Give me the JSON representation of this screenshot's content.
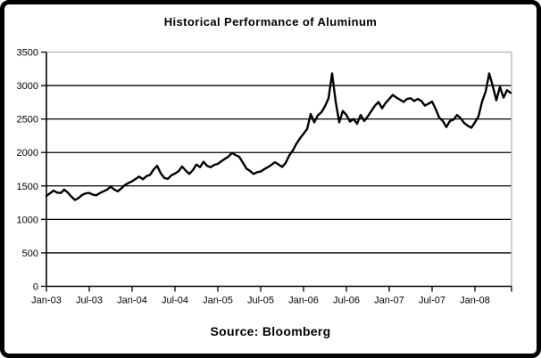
{
  "source_caption": "Source: Bloomberg",
  "colors": {
    "line": "#000000",
    "grid": "#000000",
    "axis": "#000000",
    "plot_border": "#b3b3b3",
    "frame": "#000000",
    "background": "#ffffff",
    "text": "#000000"
  },
  "chart_data": {
    "type": "line",
    "title": "Historical Performance of Aluminum",
    "xlabel": "",
    "ylabel": "",
    "ylim": [
      0,
      3500
    ],
    "y_ticks": [
      0,
      500,
      1000,
      1500,
      2000,
      2500,
      3000,
      3500
    ],
    "x_tick_labels": [
      "Jan-03",
      "Jul-03",
      "Jan-04",
      "Jul-04",
      "Jan-05",
      "Jul-05",
      "Jan-06",
      "Jul-06",
      "Jan-07",
      "Jul-07",
      "Jan-08"
    ],
    "x_start": "Jan-03",
    "x_end": "Jun-08",
    "grid": true,
    "legend": "none",
    "series": [
      {
        "name": "Aluminum",
        "points_per_month": 2,
        "values": [
          1350,
          1390,
          1430,
          1400,
          1395,
          1445,
          1400,
          1340,
          1290,
          1320,
          1365,
          1390,
          1395,
          1370,
          1360,
          1395,
          1420,
          1445,
          1490,
          1445,
          1420,
          1465,
          1515,
          1545,
          1570,
          1605,
          1640,
          1600,
          1645,
          1665,
          1745,
          1800,
          1690,
          1620,
          1605,
          1660,
          1685,
          1720,
          1790,
          1730,
          1680,
          1735,
          1820,
          1780,
          1860,
          1800,
          1780,
          1815,
          1830,
          1870,
          1905,
          1940,
          1995,
          1960,
          1935,
          1850,
          1760,
          1725,
          1680,
          1705,
          1715,
          1750,
          1780,
          1815,
          1855,
          1820,
          1785,
          1845,
          1955,
          2030,
          2130,
          2210,
          2280,
          2350,
          2575,
          2450,
          2555,
          2600,
          2690,
          2810,
          3180,
          2760,
          2450,
          2620,
          2560,
          2460,
          2500,
          2430,
          2560,
          2470,
          2540,
          2620,
          2700,
          2755,
          2660,
          2740,
          2800,
          2860,
          2820,
          2790,
          2755,
          2800,
          2810,
          2770,
          2800,
          2770,
          2700,
          2730,
          2760,
          2650,
          2520,
          2470,
          2380,
          2470,
          2490,
          2560,
          2510,
          2440,
          2400,
          2370,
          2450,
          2540,
          2760,
          2910,
          3180,
          2990,
          2780,
          2980,
          2820,
          2930,
          2890
        ]
      }
    ]
  }
}
